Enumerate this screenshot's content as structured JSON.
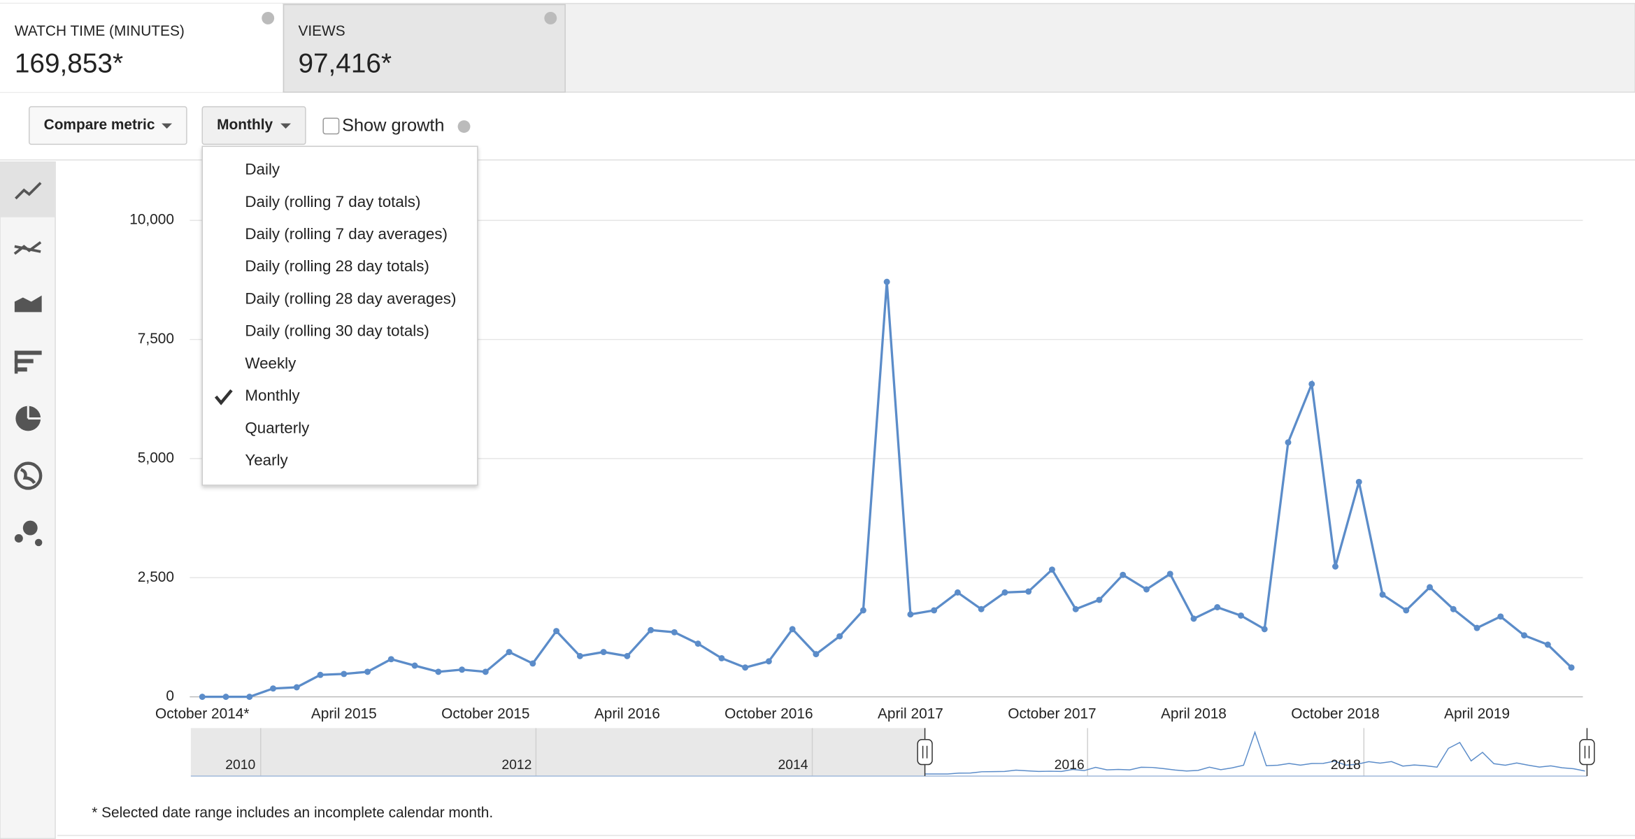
{
  "metrics": [
    {
      "label": "WATCH TIME (MINUTES)",
      "value": "169,853*"
    },
    {
      "label": "VIEWS",
      "value": "97,416*"
    }
  ],
  "controls": {
    "compare": "Compare metric",
    "interval": "Monthly",
    "show_growth": "Show growth"
  },
  "interval_menu": {
    "items": [
      "Daily",
      "Daily (rolling 7 day totals)",
      "Daily (rolling 7 day averages)",
      "Daily (rolling 28 day totals)",
      "Daily (rolling 28 day averages)",
      "Daily (rolling 30 day totals)",
      "Weekly",
      "Monthly",
      "Quarterly",
      "Yearly"
    ],
    "selected": 7
  },
  "chart_data": {
    "type": "line",
    "color": "#5b8cc9",
    "grid": true,
    "categories": [
      "October 2014*",
      null,
      null,
      null,
      null,
      null,
      "April 2015",
      null,
      null,
      null,
      null,
      null,
      "October 2015",
      null,
      null,
      null,
      null,
      null,
      "April 2016",
      null,
      null,
      null,
      null,
      null,
      "October 2016",
      null,
      null,
      null,
      null,
      null,
      "April 2017",
      null,
      null,
      null,
      null,
      null,
      "October 2017",
      null,
      null,
      null,
      null,
      null,
      "April 2018",
      null,
      null,
      null,
      null,
      null,
      "October 2018",
      null,
      null,
      null,
      null,
      null,
      "April 2019",
      null,
      null,
      null,
      null
    ],
    "values": [
      0,
      0,
      0,
      175,
      200,
      460,
      480,
      525,
      790,
      655,
      525,
      570,
      525,
      940,
      700,
      1380,
      855,
      940,
      855,
      1400,
      1355,
      1115,
      810,
      615,
      745,
      1420,
      895,
      1270,
      1815,
      8710,
      1730,
      1815,
      2190,
      1840,
      2190,
      2210,
      2670,
      1840,
      2035,
      2560,
      2255,
      2580,
      1640,
      1880,
      1705,
      1420,
      5340,
      6565,
      2735,
      4510,
      2145,
      1815,
      2300,
      1840,
      1445,
      1685,
      1290,
      1095,
      615
    ],
    "ylim": [
      0,
      10000
    ],
    "yticks": [
      0,
      {
        "value": 2500,
        "label": "2,500"
      },
      {
        "value": 5000,
        "label": "5,000"
      },
      {
        "value": 7500,
        "label": "7,500"
      },
      {
        "value": 10000,
        "label": "10,000"
      }
    ]
  },
  "navigator": {
    "labels": [
      "2010",
      "2012",
      "2014",
      "2016",
      "2018"
    ]
  },
  "footnote": "* Selected date range includes an incomplete calendar month."
}
